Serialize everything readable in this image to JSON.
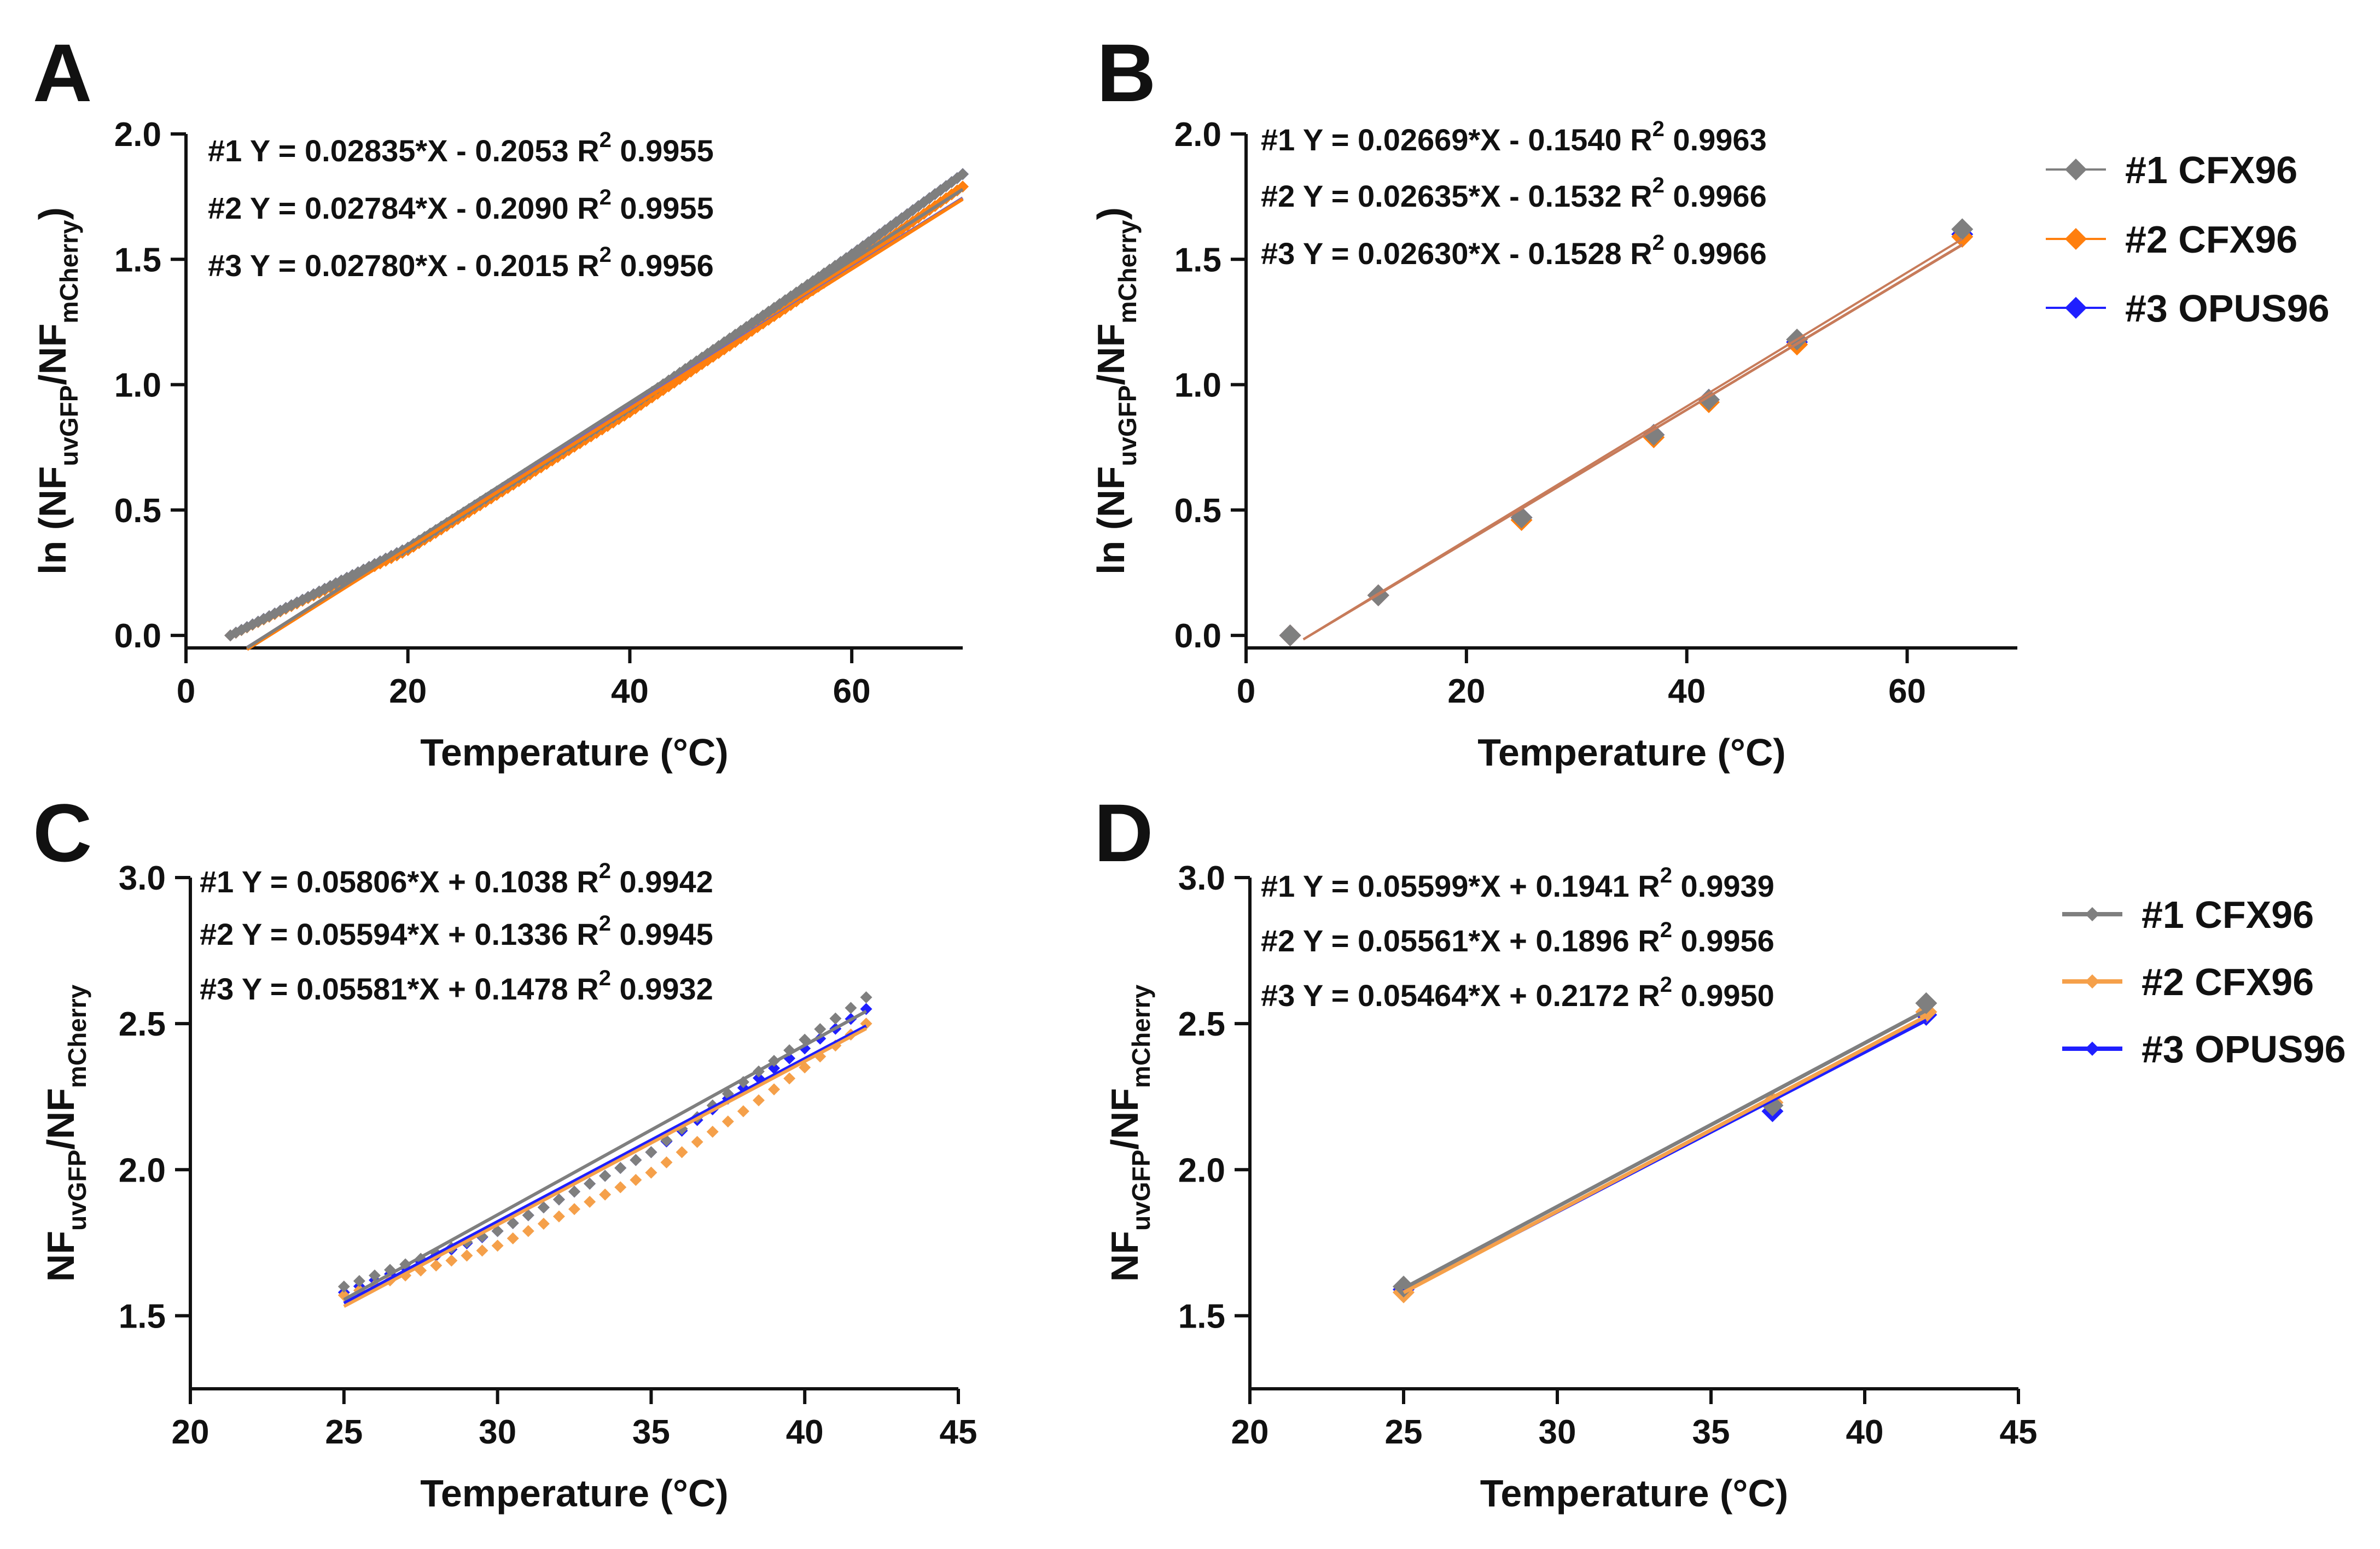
{
  "colors": {
    "series1": "#7f7f7f",
    "series2_AB": "#ff7f0e",
    "series2_CD": "#f5a04a",
    "series3": "#1f1fff",
    "series3_fitA": "#7a6ab8",
    "fitB": "#c77b5a"
  },
  "legends": [
    {
      "panel": "B",
      "entries": [
        "#1 CFX96",
        "#2 CFX96",
        "#3 OPUS96"
      ]
    },
    {
      "panel": "D",
      "entries": [
        "#1 CFX96",
        "#2 CFX96",
        "#3 OPUS96"
      ]
    }
  ],
  "chart_data": [
    {
      "panel": "A",
      "type": "scatter",
      "xlabel": "Temperature (°C)",
      "ylabel": {
        "prefix": "ln (NF",
        "sub1": "uvGFP",
        "mid": "/NF",
        "sub2": "mCherry",
        "suffix": ")"
      },
      "xlim": [
        0,
        70
      ],
      "ylim": [
        -0.05,
        2.0
      ],
      "xticks": [
        0,
        20,
        40,
        60
      ],
      "yticks": [
        0.0,
        0.5,
        1.0,
        1.5,
        2.0
      ],
      "xtick_labels": [
        "0",
        "20",
        "40",
        "60"
      ],
      "ytick_labels": [
        "0.0",
        "0.5",
        "1.0",
        "1.5",
        "2.0"
      ],
      "equations": [
        {
          "id": "#1",
          "eq": "Y = 0.02835*X - 0.2053",
          "r2_label": "R",
          "r2_sup": "2",
          "r2_value": "0.9955"
        },
        {
          "id": "#2",
          "eq": "Y = 0.02784*X - 0.2090",
          "r2_label": "R",
          "r2_sup": "2",
          "r2_value": "0.9955"
        },
        {
          "id": "#3",
          "eq": "Y = 0.02780*X - 0.2015",
          "r2_label": "R",
          "r2_sup": "2",
          "r2_value": "0.9956"
        }
      ],
      "dense_series": [
        {
          "name": "#3",
          "x_start": 4,
          "x_end": 70,
          "step": 0.5,
          "y_at": [
            [
              4,
              0.0
            ],
            [
              20,
              0.35
            ],
            [
              40,
              0.9
            ],
            [
              60,
              1.52
            ],
            [
              70,
              1.84
            ]
          ]
        },
        {
          "name": "#2",
          "x_start": 4,
          "x_end": 70,
          "step": 0.5,
          "y_at": [
            [
              4,
              0.0
            ],
            [
              20,
              0.34
            ],
            [
              40,
              0.89
            ],
            [
              60,
              1.48
            ],
            [
              70,
              1.79
            ]
          ]
        },
        {
          "name": "#1",
          "x_start": 4,
          "x_end": 70,
          "step": 0.5,
          "y_at": [
            [
              4,
              0.0
            ],
            [
              20,
              0.35
            ],
            [
              40,
              0.91
            ],
            [
              60,
              1.52
            ],
            [
              70,
              1.84
            ]
          ]
        }
      ],
      "fits": [
        {
          "name": "#1",
          "slope": 0.02835,
          "intercept": -0.2053,
          "x_range": [
            5.5,
            70
          ]
        },
        {
          "name": "#2",
          "slope": 0.02784,
          "intercept": -0.209,
          "x_range": [
            5.5,
            70
          ]
        },
        {
          "name": "#3",
          "slope": 0.0278,
          "intercept": -0.2015,
          "x_range": [
            5.5,
            70
          ]
        }
      ]
    },
    {
      "panel": "B",
      "type": "scatter",
      "xlabel": "Temperature (°C)",
      "ylabel": {
        "prefix": "ln (NF",
        "sub1": "uvGFP",
        "mid": "/NF",
        "sub2": "mCherry",
        "suffix": ")"
      },
      "xlim": [
        0,
        70
      ],
      "ylim": [
        -0.05,
        2.0
      ],
      "xticks": [
        0,
        20,
        40,
        60
      ],
      "yticks": [
        0.0,
        0.5,
        1.0,
        1.5,
        2.0
      ],
      "xtick_labels": [
        "0",
        "20",
        "40",
        "60"
      ],
      "ytick_labels": [
        "0.0",
        "0.5",
        "1.0",
        "1.5",
        "2.0"
      ],
      "equations": [
        {
          "id": "#1",
          "eq": "Y = 0.02669*X - 0.1540",
          "r2_label": "R",
          "r2_sup": "2",
          "r2_value": "0.9963"
        },
        {
          "id": "#2",
          "eq": "Y = 0.02635*X - 0.1532",
          "r2_label": "R",
          "r2_sup": "2",
          "r2_value": "0.9966"
        },
        {
          "id": "#3",
          "eq": "Y = 0.02630*X - 0.1528",
          "r2_label": "R",
          "r2_sup": "2",
          "r2_value": "0.9966"
        }
      ],
      "series": [
        {
          "name": "#3",
          "x": [
            4,
            12,
            25,
            37,
            42,
            50,
            65
          ],
          "y": [
            0.0,
            0.16,
            0.47,
            0.8,
            0.94,
            1.17,
            1.6
          ]
        },
        {
          "name": "#2",
          "x": [
            4,
            12,
            25,
            37,
            42,
            50,
            65
          ],
          "y": [
            0.0,
            0.16,
            0.46,
            0.79,
            0.93,
            1.16,
            1.59
          ]
        },
        {
          "name": "#1",
          "x": [
            4,
            12,
            25,
            37,
            42,
            50,
            65
          ],
          "y": [
            0.0,
            0.16,
            0.47,
            0.8,
            0.94,
            1.18,
            1.62
          ]
        }
      ],
      "fits": [
        {
          "name": "#1",
          "slope": 0.02669,
          "intercept": -0.154,
          "x_range": [
            5.2,
            65
          ]
        },
        {
          "name": "#2",
          "slope": 0.02635,
          "intercept": -0.1532,
          "x_range": [
            5.2,
            65
          ]
        },
        {
          "name": "#3",
          "slope": 0.0263,
          "intercept": -0.1528,
          "x_range": [
            5.2,
            65
          ]
        }
      ]
    },
    {
      "panel": "C",
      "type": "scatter",
      "xlabel": "Temperature (°C)",
      "ylabel": {
        "prefix": "NF",
        "sub1": "uvGFP",
        "mid": "/NF",
        "sub2": "mCherry",
        "suffix": ""
      },
      "xlim": [
        20,
        45
      ],
      "ylim": [
        1.25,
        3.0
      ],
      "xticks": [
        20,
        25,
        30,
        35,
        40,
        45
      ],
      "yticks": [
        1.5,
        2.0,
        2.5,
        3.0
      ],
      "xtick_labels": [
        "20",
        "25",
        "30",
        "35",
        "40",
        "45"
      ],
      "ytick_labels": [
        "1.5",
        "2.0",
        "2.5",
        "3.0"
      ],
      "equations": [
        {
          "id": "#1",
          "eq": "Y = 0.05806*X + 0.1038",
          "r2_label": "R",
          "r2_sup": "2",
          "r2_value": "0.9942"
        },
        {
          "id": "#2",
          "eq": "Y = 0.05594*X + 0.1336",
          "r2_label": "R",
          "r2_sup": "2",
          "r2_value": "0.9945"
        },
        {
          "id": "#3",
          "eq": "Y = 0.05581*X + 0.1478",
          "r2_label": "R",
          "r2_sup": "2",
          "r2_value": "0.9932"
        }
      ],
      "dense_series": [
        {
          "name": "#3",
          "x_start": 25,
          "x_end": 42,
          "step": 0.5,
          "y_at": [
            [
              25,
              1.58
            ],
            [
              30,
              1.79
            ],
            [
              35,
              2.06
            ],
            [
              38,
              2.28
            ],
            [
              42,
              2.55
            ]
          ]
        },
        {
          "name": "#2",
          "x_start": 25,
          "x_end": 42,
          "step": 0.5,
          "y_at": [
            [
              25,
              1.57
            ],
            [
              30,
              1.74
            ],
            [
              35,
              1.99
            ],
            [
              38,
              2.2
            ],
            [
              42,
              2.5
            ]
          ]
        },
        {
          "name": "#1",
          "x_start": 25,
          "x_end": 42,
          "step": 0.5,
          "y_at": [
            [
              25,
              1.6
            ],
            [
              30,
              1.79
            ],
            [
              35,
              2.06
            ],
            [
              38,
              2.3
            ],
            [
              42,
              2.59
            ]
          ]
        }
      ],
      "fits": [
        {
          "name": "#1",
          "slope": 0.05806,
          "intercept": 0.1038,
          "x_range": [
            25,
            42
          ]
        },
        {
          "name": "#2",
          "slope": 0.05594,
          "intercept": 0.1336,
          "x_range": [
            25,
            42
          ]
        },
        {
          "name": "#3",
          "slope": 0.05581,
          "intercept": 0.1478,
          "x_range": [
            25,
            42
          ]
        }
      ]
    },
    {
      "panel": "D",
      "type": "scatter",
      "xlabel": "Temperature (°C)",
      "ylabel": {
        "prefix": "NF",
        "sub1": "uvGFP",
        "mid": "/NF",
        "sub2": "mCherry",
        "suffix": ""
      },
      "xlim": [
        20,
        45
      ],
      "ylim": [
        1.25,
        3.0
      ],
      "xticks": [
        20,
        25,
        30,
        35,
        40,
        45
      ],
      "yticks": [
        1.5,
        2.0,
        2.5,
        3.0
      ],
      "xtick_labels": [
        "20",
        "25",
        "30",
        "35",
        "40",
        "45"
      ],
      "ytick_labels": [
        "1.5",
        "2.0",
        "2.5",
        "3.0"
      ],
      "equations": [
        {
          "id": "#1",
          "eq": "Y = 0.05599*X + 0.1941",
          "r2_label": "R",
          "r2_sup": "2",
          "r2_value": "0.9939"
        },
        {
          "id": "#2",
          "eq": "Y = 0.05561*X + 0.1896",
          "r2_label": "R",
          "r2_sup": "2",
          "r2_value": "0.9956"
        },
        {
          "id": "#3",
          "eq": "Y = 0.05464*X + 0.2172",
          "r2_label": "R",
          "r2_sup": "2",
          "r2_value": "0.9950"
        }
      ],
      "series": [
        {
          "name": "#3",
          "x": [
            25,
            37,
            42
          ],
          "y": [
            1.59,
            2.2,
            2.53
          ]
        },
        {
          "name": "#2",
          "x": [
            25,
            37,
            42
          ],
          "y": [
            1.58,
            2.23,
            2.54
          ]
        },
        {
          "name": "#1",
          "x": [
            25,
            37,
            42
          ],
          "y": [
            1.6,
            2.22,
            2.57
          ]
        }
      ],
      "fits": [
        {
          "name": "#1",
          "slope": 0.05599,
          "intercept": 0.1941,
          "x_range": [
            25,
            42
          ]
        },
        {
          "name": "#2",
          "slope": 0.05561,
          "intercept": 0.1896,
          "x_range": [
            25,
            42
          ]
        },
        {
          "name": "#3",
          "slope": 0.05464,
          "intercept": 0.2172,
          "x_range": [
            25,
            42
          ]
        }
      ]
    }
  ]
}
